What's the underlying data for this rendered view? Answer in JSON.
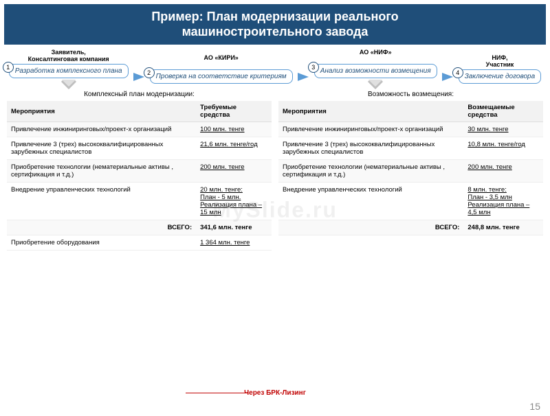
{
  "title_line1": "Пример: План модернизации реального",
  "title_line2": "машиностроительного завода",
  "flow": [
    {
      "label": "Заявитель,\nКонсалтинговая компания",
      "box": "Разработка комплексного плана",
      "num": "1"
    },
    {
      "label": "АО «КИРИ»",
      "box": "Проверка на соответствие критериям",
      "num": "2"
    },
    {
      "label": "АО «НИФ»",
      "box": "Анализ возможности возмещения",
      "num": "3"
    },
    {
      "label": "НИФ,\nУчастник",
      "box": "Заключение договора",
      "num": "4"
    }
  ],
  "table_left": {
    "caption": "Комплексный план модернизации:",
    "col1": "Мероприятия",
    "col2": "Требуемые средства",
    "rows": [
      {
        "a": "Привлечение инжиниринговых/проект-х организаций",
        "b": "100 млн. тенге"
      },
      {
        "a": "Привлечение 3 (трех) высококвалифицированных зарубежных специалистов",
        "b": "21,6 млн. тенге/год"
      },
      {
        "a": "Приобретение технологии (нематериальные активы , сертификация и т.д.)",
        "b": "200 млн. тенге"
      },
      {
        "a": "Внедрение управленческих технологий",
        "b": "20 млн. тенге:\nПлан - 5 млн.\nРеализация плана – 15 млн"
      }
    ],
    "total_label": "ВСЕГО:",
    "total_value": "341,6 млн. тенге",
    "extra_a": "Приобретение оборудования",
    "extra_b": "1 364 млн. тенге"
  },
  "table_right": {
    "caption": "Возможность возмещения:",
    "col1": "Мероприятия",
    "col2": "Возмещаемые средства",
    "rows": [
      {
        "a": "Привлечение инжиниринговых/проект-х организаций",
        "b": "30 млн. тенге"
      },
      {
        "a": "Привлечение 3 (трех) высококвалифицированных зарубежных специалистов",
        "b": "10,8 млн. тенге/год"
      },
      {
        "a": "Приобретение технологии (нематериальные активы , сертификация и т.д.)",
        "b": "200 млн. тенге"
      },
      {
        "a": "Внедрение управленческих технологий",
        "b": "8 млн. тенге:\nПлан - 3,5 млн\nРеализация плана – 4,5 млн"
      }
    ],
    "total_label": "ВСЕГО:",
    "total_value": "248,8  млн. тенге"
  },
  "leasing_text": "Через БРК-Лизинг",
  "page_num": "15",
  "watermark": "MySlide.ru",
  "colors": {
    "title_bg": "#1f4e79",
    "box_border": "#5b9bd5",
    "arrow": "#5b9bd5",
    "leasing": "#c00000"
  }
}
